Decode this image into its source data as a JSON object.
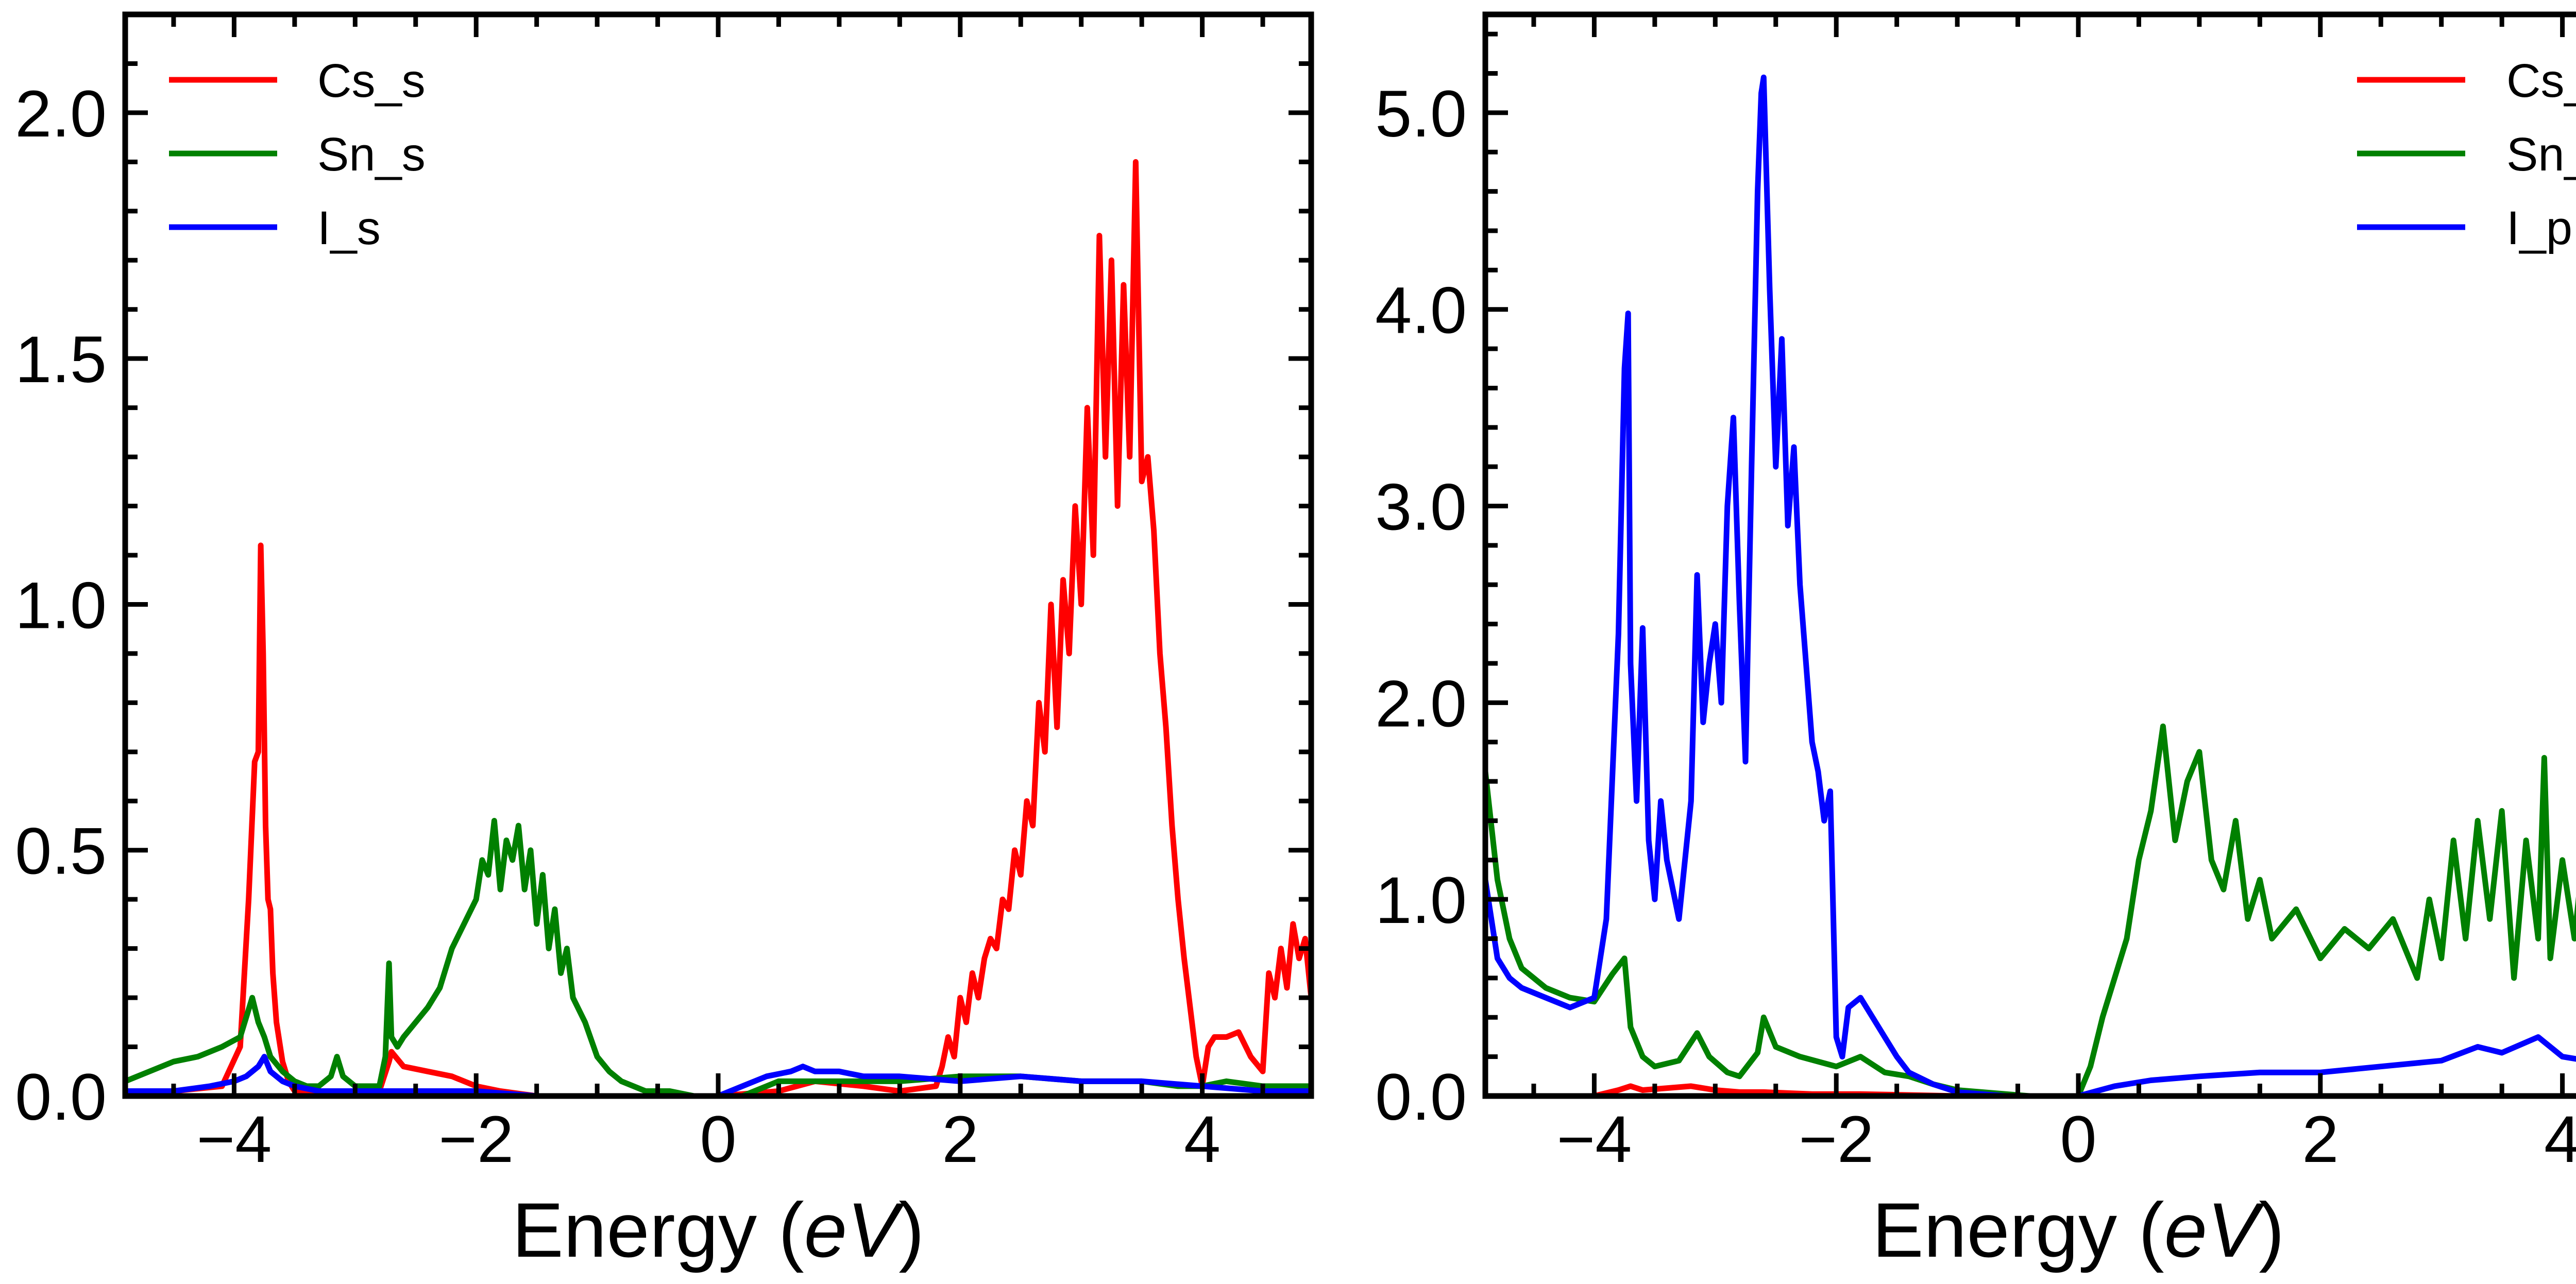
{
  "chart_data": [
    {
      "type": "line",
      "xlabel": "Energy (eV)",
      "xlabel_prefix": "Energy (",
      "xlabel_unit": "eV",
      "xlabel_suffix": ")",
      "ylabel": "",
      "xlim": [
        -4.9,
        4.9
      ],
      "ylim": [
        0,
        2.2
      ],
      "xticks": [
        -4,
        -2,
        0,
        2,
        4
      ],
      "xtick_labels": [
        "−4",
        "−2",
        "0",
        "2",
        "4"
      ],
      "yticks": [
        0,
        0.5,
        1.0,
        1.5,
        2.0
      ],
      "ytick_labels": [
        "0.0",
        "0.5",
        "1.0",
        "1.5",
        "2.0"
      ],
      "grid": false,
      "legend_position": "top-left",
      "series": [
        {
          "name": "Cs_s",
          "color": "#ff0000",
          "x": [
            -4.9,
            -4.5,
            -4.1,
            -3.95,
            -3.88,
            -3.83,
            -3.8,
            -3.78,
            -3.76,
            -3.74,
            -3.72,
            -3.7,
            -3.68,
            -3.65,
            -3.6,
            -3.55,
            -3.5,
            -3.3,
            -3.0,
            -2.8,
            -2.72,
            -2.7,
            -2.6,
            -2.4,
            -2.2,
            -2.0,
            -1.8,
            -1.5,
            -1.0,
            -0.5,
            0.0,
            0.5,
            0.8,
            1.2,
            1.5,
            1.8,
            1.85,
            1.9,
            1.95,
            2.0,
            2.05,
            2.1,
            2.15,
            2.2,
            2.25,
            2.3,
            2.35,
            2.4,
            2.45,
            2.5,
            2.55,
            2.6,
            2.65,
            2.7,
            2.75,
            2.8,
            2.85,
            2.9,
            2.95,
            3.0,
            3.05,
            3.1,
            3.15,
            3.2,
            3.25,
            3.3,
            3.35,
            3.4,
            3.45,
            3.5,
            3.55,
            3.6,
            3.65,
            3.7,
            3.75,
            3.8,
            3.85,
            3.9,
            3.95,
            4.0,
            4.05,
            4.1,
            4.2,
            4.3,
            4.4,
            4.5,
            4.55,
            4.6,
            4.65,
            4.7,
            4.75,
            4.8,
            4.85,
            4.9
          ],
          "y": [
            0.01,
            0.01,
            0.02,
            0.1,
            0.4,
            0.68,
            0.7,
            1.12,
            0.9,
            0.55,
            0.4,
            0.38,
            0.25,
            0.15,
            0.07,
            0.03,
            0.01,
            0.01,
            0.01,
            0.01,
            0.07,
            0.09,
            0.06,
            0.05,
            0.04,
            0.02,
            0.01,
            0.0,
            0.0,
            0.0,
            0.0,
            0.01,
            0.03,
            0.02,
            0.01,
            0.02,
            0.06,
            0.12,
            0.08,
            0.2,
            0.15,
            0.25,
            0.2,
            0.28,
            0.32,
            0.3,
            0.4,
            0.38,
            0.5,
            0.45,
            0.6,
            0.55,
            0.8,
            0.7,
            1.0,
            0.75,
            1.05,
            0.9,
            1.2,
            1.0,
            1.4,
            1.1,
            1.75,
            1.3,
            1.7,
            1.2,
            1.65,
            1.3,
            1.9,
            1.25,
            1.3,
            1.15,
            0.9,
            0.75,
            0.55,
            0.4,
            0.28,
            0.18,
            0.08,
            0.02,
            0.1,
            0.12,
            0.12,
            0.13,
            0.08,
            0.05,
            0.25,
            0.2,
            0.3,
            0.22,
            0.35,
            0.28,
            0.32,
            0.2
          ]
        },
        {
          "name": "Sn_s",
          "color": "#008000",
          "x": [
            -4.9,
            -4.7,
            -4.5,
            -4.3,
            -4.1,
            -3.95,
            -3.85,
            -3.8,
            -3.75,
            -3.7,
            -3.6,
            -3.5,
            -3.4,
            -3.3,
            -3.2,
            -3.15,
            -3.1,
            -3.0,
            -2.9,
            -2.8,
            -2.75,
            -2.72,
            -2.7,
            -2.65,
            -2.6,
            -2.5,
            -2.4,
            -2.3,
            -2.2,
            -2.1,
            -2.0,
            -1.95,
            -1.9,
            -1.85,
            -1.8,
            -1.75,
            -1.7,
            -1.65,
            -1.6,
            -1.55,
            -1.5,
            -1.45,
            -1.4,
            -1.35,
            -1.3,
            -1.25,
            -1.2,
            -1.1,
            -1.0,
            -0.9,
            -0.8,
            -0.6,
            -0.4,
            -0.2,
            0.0,
            0.2,
            0.5,
            1.0,
            1.5,
            2.0,
            2.5,
            3.0,
            3.5,
            3.8,
            4.0,
            4.2,
            4.5,
            4.9
          ],
          "y": [
            0.03,
            0.05,
            0.07,
            0.08,
            0.1,
            0.12,
            0.2,
            0.15,
            0.12,
            0.08,
            0.05,
            0.03,
            0.02,
            0.02,
            0.04,
            0.08,
            0.04,
            0.02,
            0.02,
            0.02,
            0.08,
            0.27,
            0.12,
            0.1,
            0.12,
            0.15,
            0.18,
            0.22,
            0.3,
            0.35,
            0.4,
            0.48,
            0.45,
            0.56,
            0.42,
            0.52,
            0.48,
            0.55,
            0.42,
            0.5,
            0.35,
            0.45,
            0.3,
            0.38,
            0.25,
            0.3,
            0.2,
            0.15,
            0.08,
            0.05,
            0.03,
            0.01,
            0.01,
            0.0,
            0.0,
            0.0,
            0.03,
            0.03,
            0.03,
            0.04,
            0.04,
            0.03,
            0.03,
            0.02,
            0.02,
            0.03,
            0.02,
            0.02
          ]
        },
        {
          "name": "I_s",
          "color": "#0000ff",
          "x": [
            -4.9,
            -4.5,
            -4.2,
            -4.0,
            -3.9,
            -3.8,
            -3.75,
            -3.7,
            -3.6,
            -3.5,
            -3.3,
            -3.0,
            -2.5,
            -2.0,
            -1.5,
            -1.0,
            -0.5,
            0.0,
            0.2,
            0.4,
            0.6,
            0.7,
            0.8,
            1.0,
            1.2,
            1.5,
            2.0,
            2.5,
            3.0,
            3.5,
            4.0,
            4.5,
            4.9
          ],
          "y": [
            0.01,
            0.01,
            0.02,
            0.03,
            0.04,
            0.06,
            0.08,
            0.05,
            0.03,
            0.02,
            0.01,
            0.01,
            0.01,
            0.01,
            0.0,
            0.0,
            0.0,
            0.0,
            0.02,
            0.04,
            0.05,
            0.06,
            0.05,
            0.05,
            0.04,
            0.04,
            0.03,
            0.04,
            0.03,
            0.03,
            0.02,
            0.01,
            0.01
          ]
        }
      ]
    },
    {
      "type": "line",
      "xlabel": "Energy (eV)",
      "xlabel_prefix": "Energy (",
      "xlabel_unit": "eV",
      "xlabel_suffix": ")",
      "ylabel": "",
      "xlim": [
        -4.9,
        4.9
      ],
      "ylim": [
        0,
        5.5
      ],
      "xticks": [
        -4,
        -2,
        0,
        2,
        4
      ],
      "xtick_labels": [
        "−4",
        "−2",
        "0",
        "2",
        "4"
      ],
      "yticks": [
        0,
        1.0,
        2.0,
        3.0,
        4.0,
        5.0
      ],
      "ytick_labels": [
        "0.0",
        "1.0",
        "2.0",
        "3.0",
        "4.0",
        "5.0"
      ],
      "grid": false,
      "legend_position": "top-right",
      "series": [
        {
          "name": "Cs_p",
          "color": "#ff0000",
          "x": [
            -4.9,
            -4.0,
            -3.8,
            -3.7,
            -3.6,
            -3.4,
            -3.2,
            -3.0,
            -2.8,
            -2.6,
            -2.2,
            -1.8,
            -1.0,
            0.0,
            1.0,
            2.0,
            3.0,
            4.0,
            4.9
          ],
          "y": [
            0.0,
            0.0,
            0.03,
            0.05,
            0.03,
            0.04,
            0.05,
            0.03,
            0.02,
            0.02,
            0.01,
            0.01,
            0.0,
            0.0,
            0.0,
            0.0,
            0.0,
            0.0,
            0.0
          ],
          "note": ""
        },
        {
          "name": "Sn_p",
          "color": "#008000",
          "x": [
            -4.9,
            -4.8,
            -4.7,
            -4.6,
            -4.5,
            -4.4,
            -4.2,
            -4.0,
            -3.85,
            -3.75,
            -3.7,
            -3.6,
            -3.5,
            -3.3,
            -3.15,
            -3.05,
            -2.9,
            -2.8,
            -2.65,
            -2.6,
            -2.5,
            -2.3,
            -2.0,
            -1.8,
            -1.6,
            -1.4,
            -1.2,
            -1.0,
            -0.8,
            -0.6,
            -0.4,
            -0.2,
            0.0,
            0.1,
            0.2,
            0.3,
            0.4,
            0.5,
            0.6,
            0.7,
            0.8,
            0.9,
            1.0,
            1.1,
            1.2,
            1.3,
            1.4,
            1.5,
            1.6,
            1.8,
            2.0,
            2.2,
            2.4,
            2.6,
            2.8,
            2.9,
            3.0,
            3.1,
            3.2,
            3.3,
            3.4,
            3.5,
            3.6,
            3.7,
            3.8,
            3.85,
            3.9,
            4.0,
            4.1,
            4.2,
            4.3,
            4.4,
            4.5,
            4.6,
            4.7,
            4.8,
            4.9
          ],
          "y": [
            1.65,
            1.1,
            0.8,
            0.65,
            0.6,
            0.55,
            0.5,
            0.48,
            0.62,
            0.7,
            0.35,
            0.2,
            0.15,
            0.18,
            0.32,
            0.2,
            0.12,
            0.1,
            0.22,
            0.4,
            0.25,
            0.2,
            0.15,
            0.2,
            0.12,
            0.1,
            0.06,
            0.03,
            0.02,
            0.01,
            0.0,
            0.0,
            0.0,
            0.15,
            0.4,
            0.6,
            0.8,
            1.2,
            1.45,
            1.88,
            1.3,
            1.6,
            1.75,
            1.2,
            1.05,
            1.4,
            0.9,
            1.1,
            0.8,
            0.95,
            0.7,
            0.85,
            0.75,
            0.9,
            0.6,
            1.0,
            0.7,
            1.3,
            0.8,
            1.4,
            0.9,
            1.45,
            0.6,
            1.3,
            0.8,
            1.72,
            0.7,
            1.2,
            0.8,
            1.4,
            0.6,
            1.1,
            0.5,
            1.2,
            0.8,
            0.6,
            0.1
          ]
        },
        {
          "name": "I_p",
          "color": "#0000ff",
          "x": [
            -4.9,
            -4.8,
            -4.7,
            -4.6,
            -4.4,
            -4.2,
            -4.0,
            -3.9,
            -3.8,
            -3.75,
            -3.72,
            -3.7,
            -3.65,
            -3.6,
            -3.55,
            -3.5,
            -3.45,
            -3.4,
            -3.3,
            -3.2,
            -3.15,
            -3.1,
            -3.05,
            -3.0,
            -2.95,
            -2.9,
            -2.85,
            -2.8,
            -2.75,
            -2.7,
            -2.65,
            -2.62,
            -2.6,
            -2.55,
            -2.5,
            -2.45,
            -2.4,
            -2.35,
            -2.3,
            -2.25,
            -2.2,
            -2.15,
            -2.1,
            -2.05,
            -2.0,
            -1.95,
            -1.9,
            -1.8,
            -1.7,
            -1.6,
            -1.5,
            -1.4,
            -1.2,
            -1.0,
            -0.8,
            -0.6,
            -0.4,
            -0.2,
            0.0,
            0.3,
            0.6,
            1.0,
            1.5,
            2.0,
            2.5,
            3.0,
            3.3,
            3.5,
            3.8,
            4.0,
            4.2,
            4.5,
            4.9
          ],
          "y": [
            1.1,
            0.7,
            0.6,
            0.55,
            0.5,
            0.45,
            0.5,
            0.9,
            2.35,
            3.7,
            3.98,
            2.2,
            1.5,
            2.38,
            1.3,
            1.0,
            1.5,
            1.2,
            0.9,
            1.5,
            2.65,
            1.9,
            2.2,
            2.4,
            2.0,
            3.0,
            3.45,
            2.5,
            1.7,
            3.2,
            4.6,
            5.1,
            5.18,
            4.1,
            3.2,
            3.85,
            2.9,
            3.3,
            2.6,
            2.2,
            1.8,
            1.65,
            1.4,
            1.55,
            0.3,
            0.2,
            0.45,
            0.5,
            0.4,
            0.3,
            0.2,
            0.12,
            0.06,
            0.02,
            0.01,
            0.0,
            0.0,
            0.0,
            0.0,
            0.05,
            0.08,
            0.1,
            0.12,
            0.12,
            0.15,
            0.18,
            0.25,
            0.22,
            0.3,
            0.2,
            0.18,
            0.15,
            0.1
          ]
        }
      ]
    }
  ]
}
